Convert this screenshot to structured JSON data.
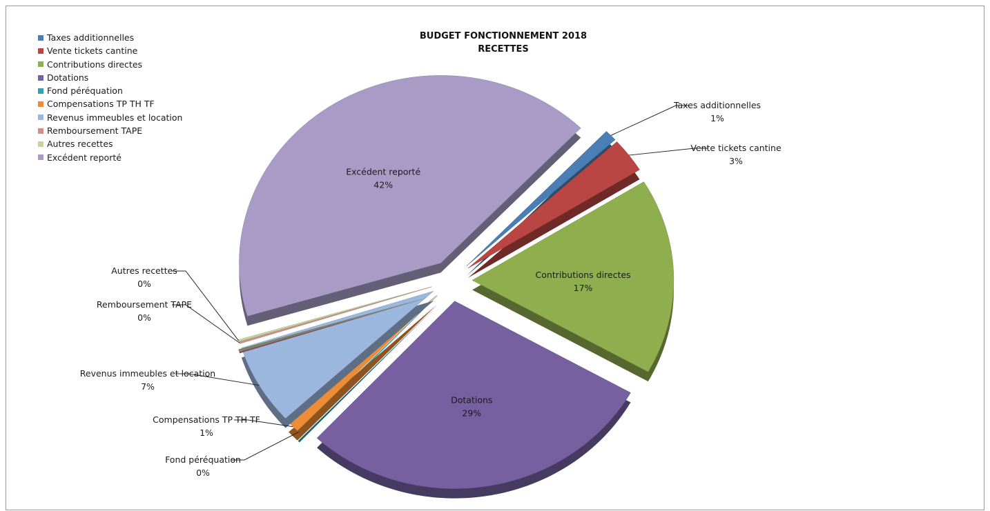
{
  "chart_data": {
    "type": "pie",
    "title": "BUDGET FONCTIONNEMENT 2018",
    "subtitle": "RECETTES",
    "legend_position": "top-left",
    "slices": [
      {
        "label": "Taxes additionnelles",
        "value": 1,
        "display": "1%",
        "color": "#4a7eb4"
      },
      {
        "label": "Vente tickets cantine",
        "value": 3,
        "display": "3%",
        "color": "#b94643"
      },
      {
        "label": "Contributions directes",
        "value": 17,
        "display": "17%",
        "color": "#8fae4e"
      },
      {
        "label": "Dotations",
        "value": 29,
        "display": "29%",
        "color": "#7660a0"
      },
      {
        "label": "Fond péréquation",
        "value": 0,
        "display": "0%",
        "color": "#33a0b5"
      },
      {
        "label": "Compensations TP TH TF",
        "value": 1,
        "display": "1%",
        "color": "#ec8c36"
      },
      {
        "label": "Revenus immeubles et location",
        "value": 7,
        "display": "7%",
        "color": "#9cb7de"
      },
      {
        "label": "Remboursement TAPE",
        "value": 0,
        "display": "0%",
        "color": "#d08e8c"
      },
      {
        "label": "Autres recettes",
        "value": 0,
        "display": "0%",
        "color": "#c2d59f"
      },
      {
        "label": "Excédent reporté",
        "value": 42,
        "display": "42%",
        "color": "#a89cc6"
      }
    ]
  }
}
